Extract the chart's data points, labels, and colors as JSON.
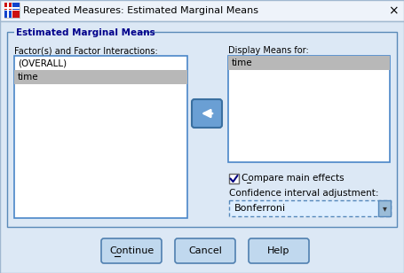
{
  "title": "Repeated Measures: Estimated Marginal Means",
  "bg_color": "#dce8f5",
  "title_bar_color": "#f0f4fa",
  "group_box_label": "Estimated Marginal Means",
  "left_list_label": "Factor(s) and Factor Interactions:",
  "left_list_items": [
    "(OVERALL)",
    "time"
  ],
  "right_list_label": "Display Means for:",
  "right_list_items": [
    "time"
  ],
  "arrow_button_color": "#5b8fc4",
  "checkbox_label": "Compare main effects",
  "dropdown_label": "Confidence interval adjustment:",
  "dropdown_value": "Bonferroni",
  "buttons": [
    "Continue",
    "Cancel",
    "Help"
  ],
  "selected_left": "time",
  "selected_right": "time",
  "selected_color": "#b8b8b8",
  "listbox_border": "#4a86c8",
  "text_color": "#000000",
  "title_text_color": "#000000",
  "group_label_color": "#00008b"
}
